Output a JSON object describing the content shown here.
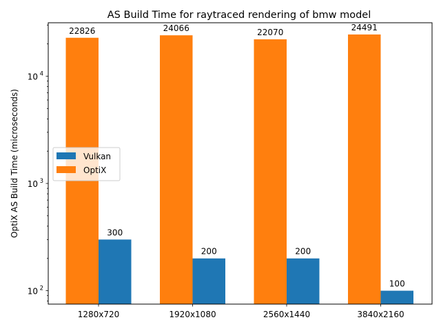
{
  "chart_data": {
    "type": "bar",
    "title": "AS Build Time for raytraced rendering of bmw model",
    "xlabel": "",
    "ylabel": "OptiX AS Build Time (microseconds)",
    "yscale": "log",
    "ylim": [
      75,
      31500
    ],
    "categories": [
      "1280x720",
      "1920x1080",
      "2560x1440",
      "3840x2160"
    ],
    "series": [
      {
        "name": "OptiX",
        "color": "#ff7f0e",
        "values": [
          22826,
          24066,
          22070,
          24491
        ],
        "labels": [
          "22826",
          "24066",
          "22070",
          "24491"
        ]
      },
      {
        "name": "Vulkan",
        "color": "#1f77b4",
        "values": [
          300,
          200,
          200,
          100
        ],
        "labels": [
          "300",
          "200",
          "200",
          "100"
        ]
      }
    ],
    "y_ticks": [
      {
        "value": 100,
        "base": "10",
        "exp": "2"
      },
      {
        "value": 1000,
        "base": "10",
        "exp": "3"
      },
      {
        "value": 10000,
        "base": "10",
        "exp": "4"
      }
    ],
    "legend": {
      "position": "center-left",
      "entries": [
        {
          "label": "Vulkan",
          "color": "#1f77b4"
        },
        {
          "label": "OptiX",
          "color": "#ff7f0e"
        }
      ]
    },
    "grid": false
  }
}
